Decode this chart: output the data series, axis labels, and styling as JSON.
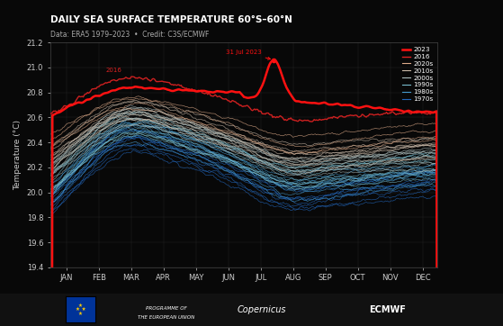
{
  "title": "DAILY SEA SURFACE TEMPERATURE 60°S–60°N",
  "subtitle": "Data: ERA5 1979–2023  •  Credit: C3S/ECMWF",
  "ylabel": "Temperature (°C)",
  "ylim": [
    19.4,
    21.2
  ],
  "yticks": [
    19.4,
    19.6,
    19.8,
    20.0,
    20.2,
    20.4,
    20.6,
    20.8,
    21.0,
    21.2
  ],
  "months": [
    "JAN",
    "FEB",
    "MAR",
    "APR",
    "MAY",
    "JUN",
    "JUL",
    "AUG",
    "SEP",
    "OCT",
    "NOV",
    "DEC"
  ],
  "bg_color": "#080808",
  "grid_color": "#2a2a2a",
  "title_color": "#ffffff",
  "decade_colors": {
    "1970s": "#2266bb",
    "1980s": "#4499cc",
    "1990s": "#77bbcc",
    "2000s": "#aabbbb",
    "2010s": "#ccbbaa",
    "2020s": "#ddaa88",
    "2016": "#dd2222",
    "2023": "#ff1111"
  },
  "annotation_2016": "2016",
  "annotation_2023": "31 Jul 2023"
}
